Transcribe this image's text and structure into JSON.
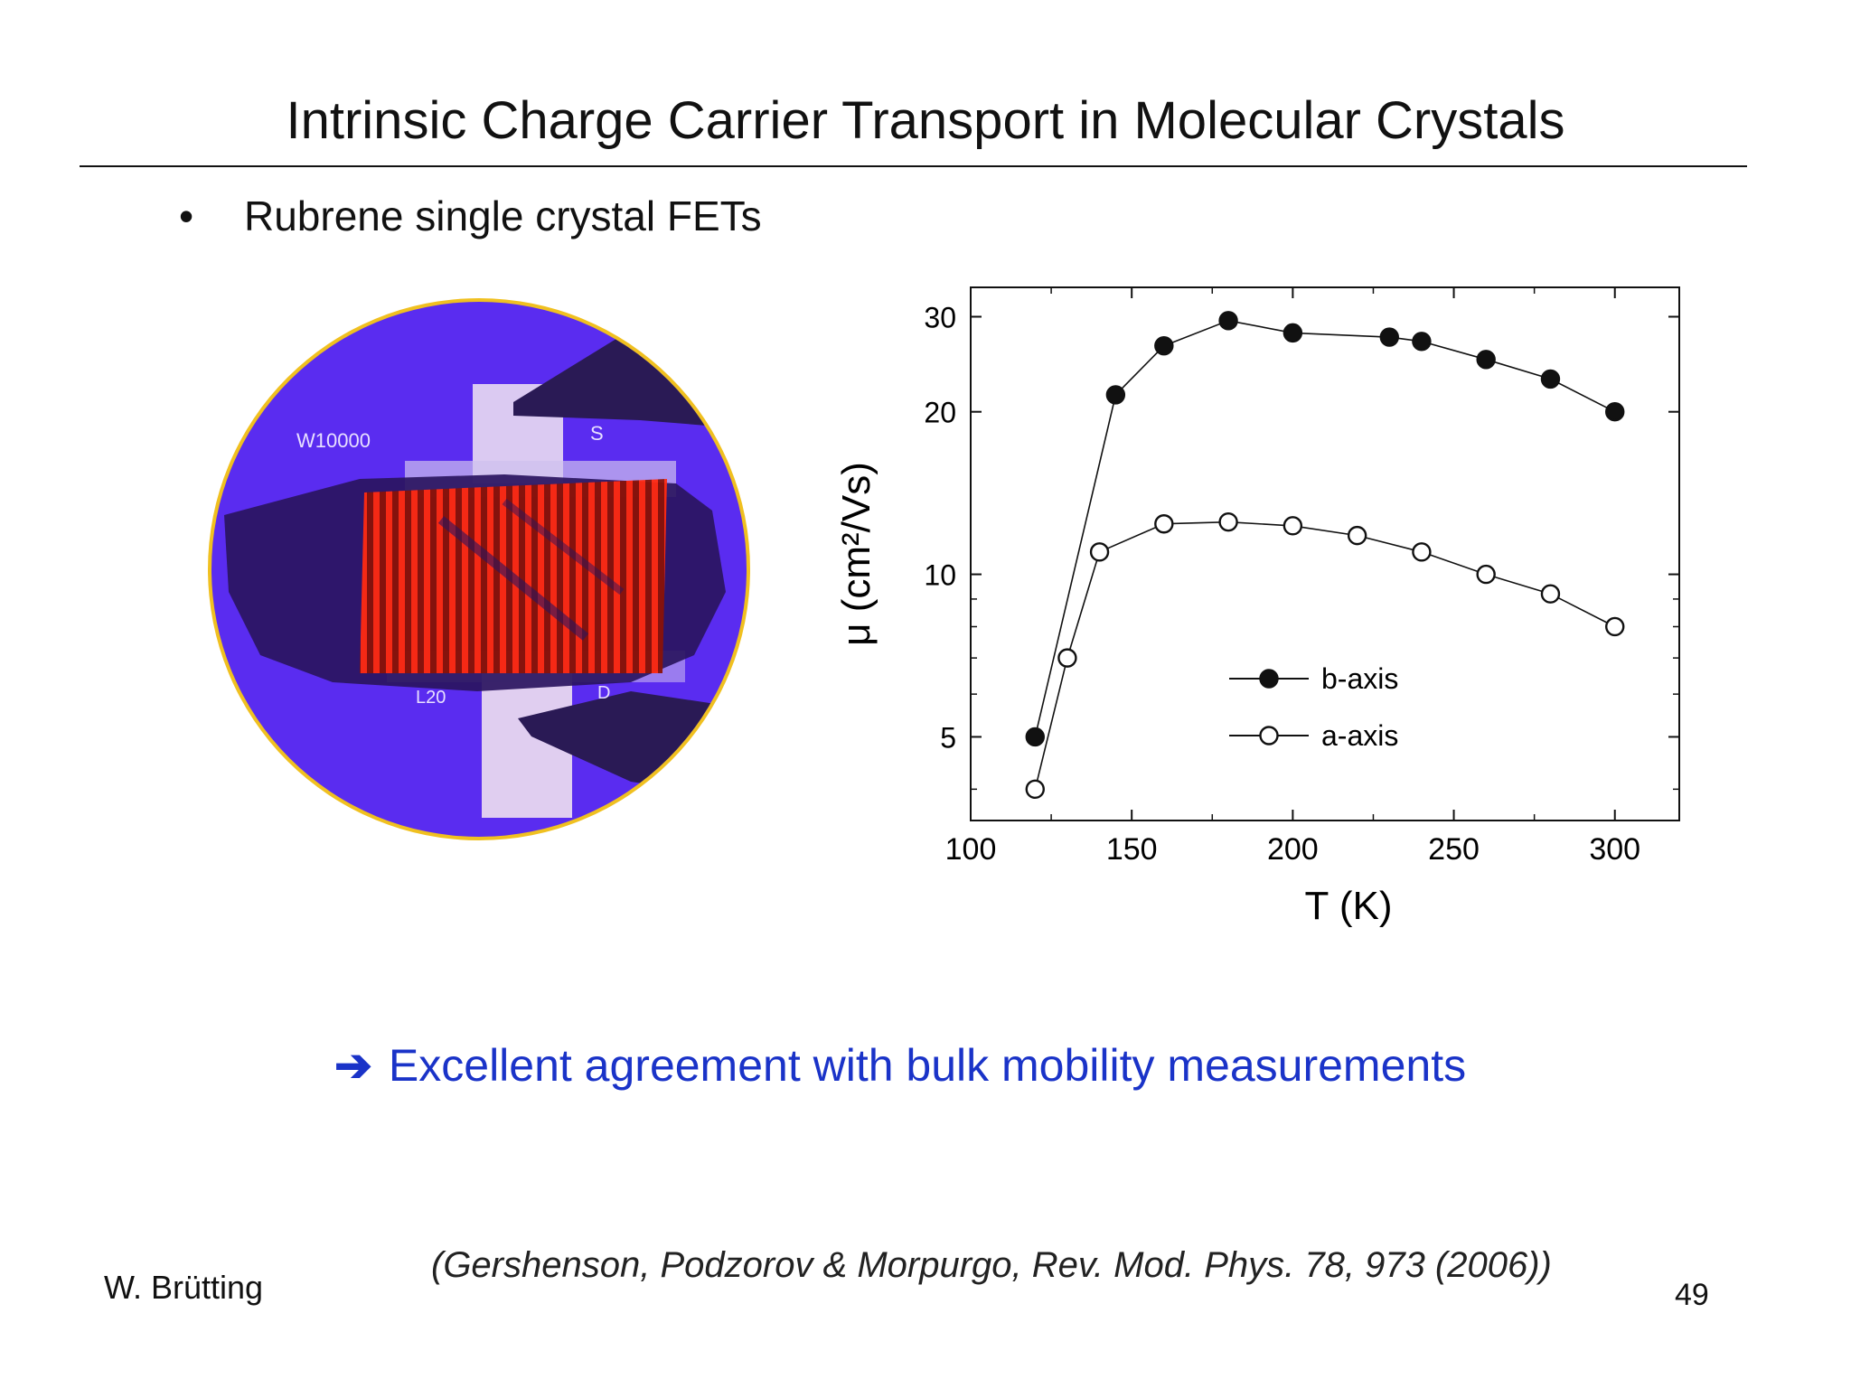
{
  "slide": {
    "title": "Intrinsic Charge Carrier Transport in Molecular Crystals",
    "bullet": "Rubrene single crystal FETs",
    "conclusion_arrow": "➔",
    "conclusion": "Excellent agreement with bulk mobility measurements",
    "author": "W. Brütting",
    "citation": "(Gershenson, Podzorov & Morpurgo, Rev. Mod. Phys. 78, 973 (2006))",
    "page_number": "49"
  },
  "photo": {
    "label_top_left": "W10000",
    "label_top_right": "S",
    "label_bottom_left": "L20",
    "label_bottom_right": "D",
    "colors": {
      "background": "#5a2cf0",
      "rim": "#f0c020",
      "channel": "#e02010"
    }
  },
  "chart_data": {
    "type": "scatter",
    "xlabel": "T (K)",
    "ylabel": "μ (cm²/Vs)",
    "xlim": [
      100,
      320
    ],
    "ylim": [
      3.5,
      34
    ],
    "yscale": "log",
    "x_ticks": [
      100,
      150,
      200,
      250,
      300
    ],
    "y_ticks": [
      5,
      10,
      20,
      30
    ],
    "legend_position": "center-right",
    "series": [
      {
        "name": "b-axis",
        "marker": "filled-circle",
        "x": [
          120,
          145,
          160,
          180,
          200,
          230,
          240,
          260,
          280,
          300
        ],
        "y": [
          5.0,
          21.5,
          26.5,
          29.5,
          28.0,
          27.5,
          27.0,
          25.0,
          23.0,
          20.0
        ]
      },
      {
        "name": "a-axis",
        "marker": "open-circle",
        "x": [
          120,
          130,
          140,
          160,
          180,
          200,
          220,
          240,
          260,
          280,
          300
        ],
        "y": [
          4.0,
          7.0,
          11.0,
          12.4,
          12.5,
          12.3,
          11.8,
          11.0,
          10.0,
          9.2,
          8.0
        ]
      }
    ]
  }
}
